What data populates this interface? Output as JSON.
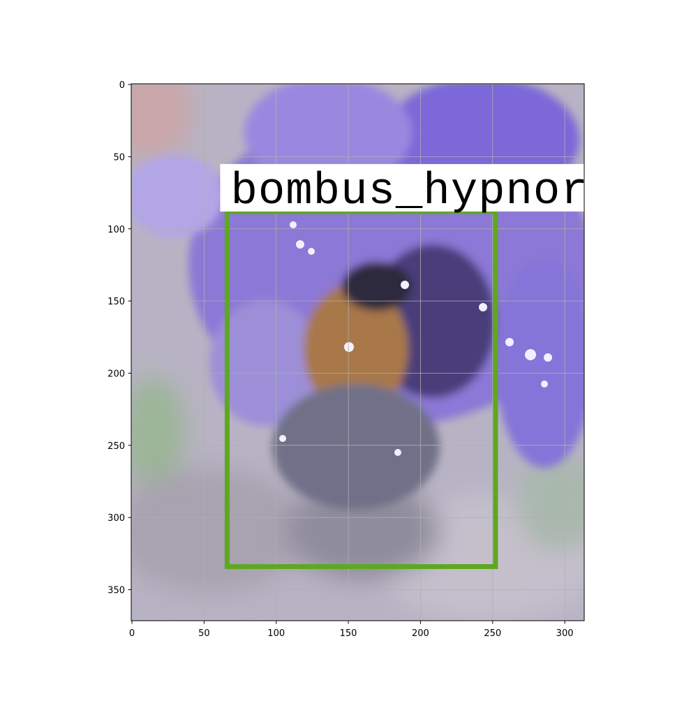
{
  "chart_data": {
    "type": "image",
    "xlim": [
      -0.5,
      313.5
    ],
    "ylim": [
      371.5,
      -0.5
    ],
    "xticks": [
      0,
      50,
      100,
      150,
      200,
      250,
      300
    ],
    "yticks": [
      0,
      50,
      100,
      150,
      200,
      250,
      300,
      350
    ],
    "grid": true,
    "box": {
      "x": [
        66,
        252
      ],
      "y": [
        88,
        334
      ],
      "color": "#5ea821",
      "label": "bombus_hypnor"
    }
  }
}
